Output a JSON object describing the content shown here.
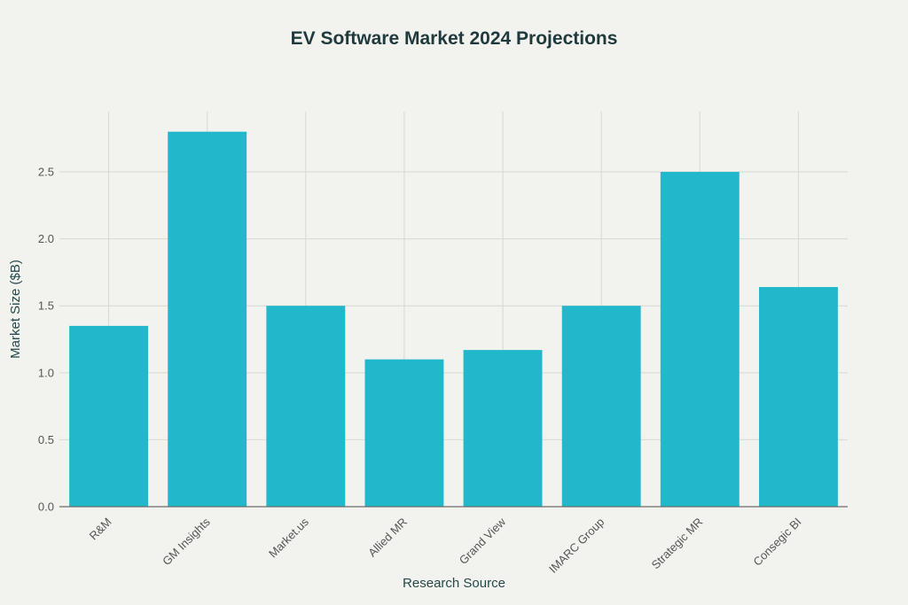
{
  "chart_data": {
    "type": "bar",
    "title": "EV Software Market 2024 Projections",
    "xlabel": "Research Source",
    "ylabel": "Market Size ($B)",
    "categories": [
      "R&M",
      "GM Insights",
      "Market.us",
      "Allied MR",
      "Grand View",
      "IMARC Group",
      "Strategic MR",
      "Consegic BI"
    ],
    "values": [
      1.35,
      2.8,
      1.5,
      1.1,
      1.17,
      1.5,
      2.5,
      1.64
    ],
    "yticks": [
      "0.0",
      "0.5",
      "1.0",
      "1.5",
      "2.0",
      "2.5"
    ],
    "ylim": [
      0,
      2.95
    ],
    "grid": true,
    "bar_color": "#22b8cc",
    "background_color": "#f2f2ee"
  }
}
